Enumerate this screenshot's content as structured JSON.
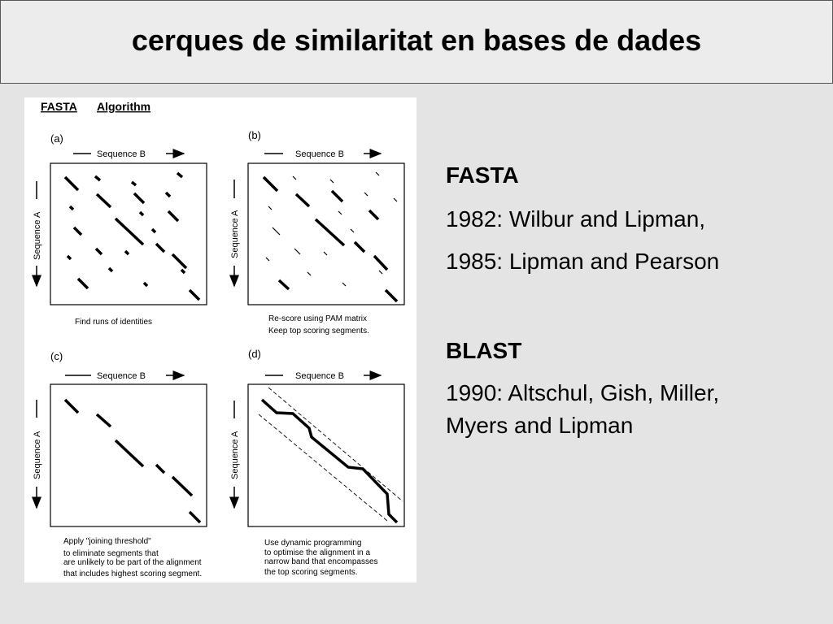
{
  "slide": {
    "title": "cerques de similaritat en bases de dades"
  },
  "figure": {
    "header_left": "FASTA",
    "header_right": "Algorithm",
    "seq_b": "Sequence B",
    "seq_a": "Sequence A",
    "panels": {
      "a": {
        "label": "(a)",
        "caption": [
          "Find runs of identities"
        ]
      },
      "b": {
        "label": "(b)",
        "caption": [
          "Re-score using PAM matrix",
          "Keep top scoring segments."
        ]
      },
      "c": {
        "label": "(c)",
        "caption": [
          "Apply \"joining threshold\"",
          "to eliminate segments that",
          "are unlikely to be part of the alignment",
          "that includes highest scoring segment."
        ]
      },
      "d": {
        "label": "(d)",
        "caption": [
          "Use dynamic programming",
          "to optimise the alignment in a",
          "narrow band that encompasses",
          "the top scoring segments."
        ]
      }
    }
  },
  "fasta": {
    "heading": "FASTA",
    "line1": "1982: Wilbur and Lipman,",
    "line2": "1985: Lipman and Pearson"
  },
  "blast": {
    "heading": "BLAST",
    "line1": "1990: Altschul, Gish, Miller,",
    "line2": "Myers and Lipman"
  }
}
